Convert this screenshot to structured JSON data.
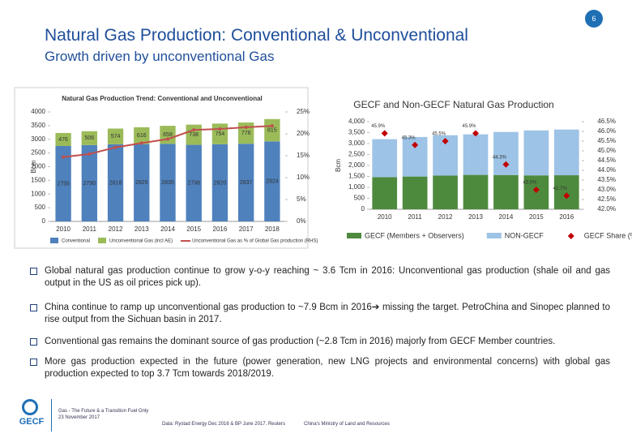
{
  "header": {
    "title": "Natural Gas Production: Conventional & Unconventional",
    "subtitle": "Growth driven by unconventional Gas",
    "page": "6"
  },
  "chart_data": [
    {
      "type": "bar",
      "stacked": true,
      "title": "Natural Gas Production Trend: Conventional and Unconventional",
      "ylabel": "Bcm",
      "categories": [
        "2010",
        "2011",
        "2012",
        "2013",
        "2014",
        "2015",
        "2016",
        "2017",
        "2018"
      ],
      "series": [
        {
          "name": "Conventional",
          "color": "#4f81bd",
          "values": [
            2755,
            2790,
            2818,
            2825,
            2835,
            2798,
            2820,
            2837,
            2924
          ],
          "data_labels": true
        },
        {
          "name": "Unconventional Gas (incl AE)",
          "color": "#9bbb59",
          "values": [
            476,
            506,
            574,
            616,
            658,
            738,
            754,
            776,
            815
          ],
          "data_labels": true
        },
        {
          "name": "Unconventional Gas as % of Global Gas production (RHS)",
          "type": "line",
          "axis": "y2",
          "color": "#c0504d",
          "values": [
            14.7,
            15.4,
            16.9,
            17.9,
            18.8,
            20.9,
            21.1,
            21.5,
            21.8
          ]
        }
      ],
      "ylim": [
        0,
        4000
      ],
      "yticks": [
        0,
        500,
        1000,
        1500,
        2000,
        2500,
        3000,
        3500,
        4000
      ],
      "y2lim": [
        0,
        25
      ],
      "y2ticks": [
        {
          "value": 0,
          "label": "0%"
        },
        {
          "value": 5,
          "label": "5%"
        },
        {
          "value": 10,
          "label": "10%"
        },
        {
          "value": 15,
          "label": "15%"
        },
        {
          "value": 20,
          "label": "20%"
        },
        {
          "value": 25,
          "label": "25%"
        }
      ],
      "legend": "bottom"
    },
    {
      "type": "bar",
      "stacked": true,
      "title": "GECF and Non-GECF Natural Gas Production",
      "ylabel": "Bcm",
      "categories": [
        "2010",
        "2011",
        "2012",
        "2013",
        "2014",
        "2015",
        "2016"
      ],
      "series": [
        {
          "name": "GECF (Members + Observers)",
          "color": "#4e8a3e",
          "values": [
            1470,
            1495,
            1538,
            1570,
            1564,
            1548,
            1554
          ]
        },
        {
          "name": "NON-GECF",
          "color": "#9dc3e6",
          "values": [
            1730,
            1805,
            1842,
            1850,
            1966,
            2052,
            2086
          ]
        },
        {
          "name": "GECF Share (%)",
          "type": "scatter",
          "axis": "y2",
          "color": "#c00000",
          "values": [
            45.9,
            45.3,
            45.5,
            45.9,
            44.3,
            43.0,
            42.7
          ],
          "value_labels": [
            "45.9%",
            "45.3%",
            "45.5%",
            "45.9%",
            "44.3%",
            "43.0%",
            "42.7%"
          ]
        }
      ],
      "ylim": [
        0,
        4000
      ],
      "yticks": [
        0,
        500,
        {
          "value": 1000,
          "label": "1,000"
        },
        {
          "value": 1500,
          "label": "1,500"
        },
        {
          "value": 2000,
          "label": "2,000"
        },
        {
          "value": 2500,
          "label": "2,500"
        },
        {
          "value": 3000,
          "label": "3,000"
        },
        {
          "value": 3500,
          "label": "3,500"
        },
        {
          "value": 4000,
          "label": "4,000"
        }
      ],
      "y2lim": [
        42,
        46.5
      ],
      "y2ticks": [
        {
          "value": 42.0,
          "label": "42.0%"
        },
        {
          "value": 42.5,
          "label": "42.5%"
        },
        {
          "value": 43.0,
          "label": "43.0%"
        },
        {
          "value": 43.5,
          "label": "43.5%"
        },
        {
          "value": 44.0,
          "label": "44.0%"
        },
        {
          "value": 44.5,
          "label": "44.5%"
        },
        {
          "value": 45.0,
          "label": "45.0%"
        },
        {
          "value": 45.5,
          "label": "45.5%"
        },
        {
          "value": 46.0,
          "label": "46.0%"
        },
        {
          "value": 46.5,
          "label": "46.5%"
        }
      ],
      "legend": "bottom"
    }
  ],
  "bullets": [
    "Global natural gas production continue to grow y-o-y reaching ~ 3.6 Tcm in 2016: Unconventional gas production (shale oil and gas output in the US as oil prices pick up).",
    "China continue to ramp up unconventional gas production to ~7.9 Bcm in 2016➔ missing the target. PetroChina and Sinopec planned to rise output from the Sichuan basin in 2017.",
    "Conventional gas remains the dominant source of gas production (~2.8 Tcm in 2016) majorly from GECF Member countries.",
    "More gas production expected in the future (power generation, new LNG projects and environmental concerns) with global gas production expected to top 3.7 Tcm towards 2018/2019."
  ],
  "footer": {
    "logo": "GECF",
    "event": "Gas - The Future & a Transition Fuel Only",
    "date": "23 November 2017",
    "source": "Data: Rystad Energy Dec 2016 & BP June 2017. Reuters",
    "source2": "China's Ministry of Land and Resources"
  }
}
